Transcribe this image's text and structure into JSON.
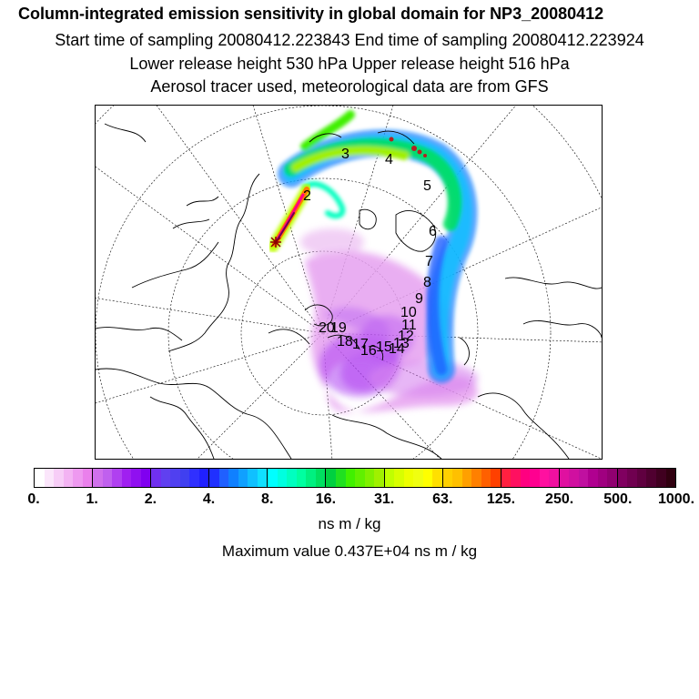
{
  "header": {
    "title": "Column-integrated emission sensitivity in global domain for NP3_20080412",
    "line2": "Start time of sampling 20080412.223843     End time of sampling 20080412.223924",
    "line3": "Lower release height  530 hPa        Upper release height  516 hPa",
    "line4": "Aerosol tracer used, meteorological data are from GFS"
  },
  "map": {
    "day_labels": [
      "2",
      "3",
      "4",
      "5",
      "6",
      "7",
      "8",
      "9",
      "10",
      "11",
      "12",
      "13",
      "14",
      "15",
      "16",
      "17",
      "18",
      "19",
      "20"
    ],
    "colors": {
      "coastline": "#000000",
      "grid": "#000000",
      "release_marker": "#8b0000"
    }
  },
  "colorbar": {
    "tick_labels": [
      "0.",
      "1.",
      "2.",
      "4.",
      "8.",
      "16.",
      "31.",
      "63.",
      "125.",
      "250.",
      "500.",
      "1000."
    ],
    "colors": [
      "#ffffff",
      "#fbe6fb",
      "#f7cdf7",
      "#f3b3f3",
      "#ee99f0",
      "#ea80ec",
      "#d070ec",
      "#c060ee",
      "#b040f0",
      "#a020f0",
      "#9010f0",
      "#8000f0",
      "#7030f0",
      "#6040f0",
      "#5040f0",
      "#4040f0",
      "#3030ff",
      "#2020ff",
      "#2030ff",
      "#2060ff",
      "#1080ff",
      "#10a0ff",
      "#10c0ff",
      "#10e0ff",
      "#00ffff",
      "#00ffe0",
      "#00ffc0",
      "#00ffa0",
      "#00f080",
      "#00e060",
      "#00d040",
      "#20e020",
      "#40f000",
      "#60f000",
      "#80f000",
      "#a0f000",
      "#c0ff00",
      "#d8ff00",
      "#eeff00",
      "#f0ff10",
      "#ffff00",
      "#ffe000",
      "#ffd000",
      "#ffc000",
      "#ffa000",
      "#ff8000",
      "#ff6000",
      "#ff4000",
      "#ff2040",
      "#ff1060",
      "#ff0080",
      "#ff0090",
      "#ff10a0",
      "#f010a0",
      "#e010a0",
      "#d010a0",
      "#c010a0",
      "#b00090",
      "#a00080",
      "#900070",
      "#800060",
      "#700050",
      "#600040",
      "#500030",
      "#400020",
      "#300010"
    ]
  },
  "units": "ns m / kg",
  "max_value": "Maximum value  0.437E+04 ns m / kg"
}
